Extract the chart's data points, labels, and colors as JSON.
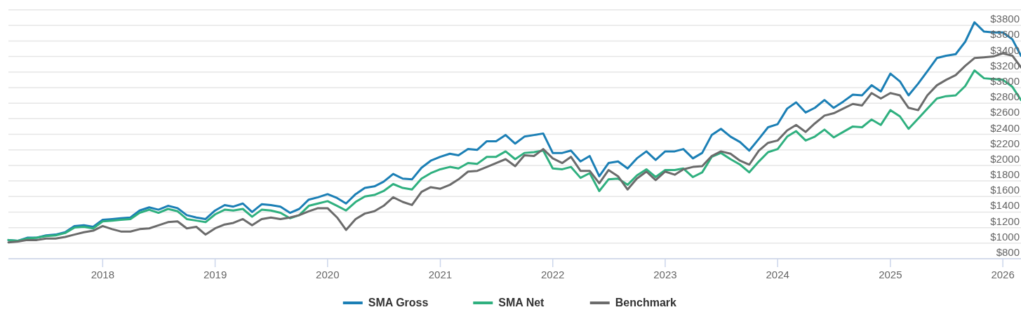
{
  "chart_data": {
    "type": "line",
    "x": [
      "2017-03",
      "2017-04",
      "2017-05",
      "2017-06",
      "2017-07",
      "2017-08",
      "2017-09",
      "2017-10",
      "2017-11",
      "2017-12",
      "2018-01",
      "2018-02",
      "2018-03",
      "2018-04",
      "2018-05",
      "2018-06",
      "2018-07",
      "2018-08",
      "2018-09",
      "2018-10",
      "2018-11",
      "2018-12",
      "2019-01",
      "2019-02",
      "2019-03",
      "2019-04",
      "2019-05",
      "2019-06",
      "2019-07",
      "2019-08",
      "2019-09",
      "2019-10",
      "2019-11",
      "2019-12",
      "2020-01",
      "2020-02",
      "2020-03",
      "2020-04",
      "2020-05",
      "2020-06",
      "2020-07",
      "2020-08",
      "2020-09",
      "2020-10",
      "2020-11",
      "2020-12",
      "2021-01",
      "2021-02",
      "2021-03",
      "2021-04",
      "2021-05",
      "2021-06",
      "2021-07",
      "2021-08",
      "2021-09",
      "2021-10",
      "2021-11",
      "2021-12",
      "2022-01",
      "2022-02",
      "2022-03",
      "2022-04",
      "2022-05",
      "2022-06",
      "2022-07",
      "2022-08",
      "2022-09",
      "2022-10",
      "2022-11",
      "2022-12",
      "2023-01",
      "2023-02",
      "2023-03",
      "2023-04",
      "2023-05",
      "2023-06",
      "2023-07",
      "2023-08",
      "2023-09",
      "2023-10",
      "2023-11",
      "2023-12",
      "2024-01",
      "2024-02",
      "2024-03",
      "2024-04",
      "2024-05",
      "2024-06",
      "2024-07",
      "2024-08",
      "2024-09",
      "2024-10",
      "2024-11",
      "2024-12",
      "2025-01",
      "2025-02",
      "2025-03",
      "2025-04",
      "2025-05",
      "2025-06",
      "2025-07",
      "2025-08",
      "2025-09",
      "2025-10",
      "2025-11",
      "2025-12",
      "2026-01",
      "2026-02",
      "2026-03"
    ],
    "series": [
      {
        "name": "SMA Gross",
        "color": "#1b7fb5",
        "values": [
          1040,
          1030,
          1070,
          1070,
          1100,
          1110,
          1140,
          1220,
          1230,
          1210,
          1300,
          1310,
          1320,
          1330,
          1420,
          1460,
          1430,
          1480,
          1450,
          1360,
          1330,
          1310,
          1420,
          1490,
          1470,
          1510,
          1400,
          1500,
          1490,
          1470,
          1390,
          1440,
          1560,
          1590,
          1630,
          1580,
          1510,
          1630,
          1710,
          1730,
          1790,
          1890,
          1830,
          1820,
          1970,
          2060,
          2110,
          2150,
          2130,
          2210,
          2200,
          2310,
          2310,
          2390,
          2280,
          2370,
          2390,
          2410,
          2160,
          2160,
          2190,
          2050,
          2120,
          1860,
          2030,
          2050,
          1960,
          2090,
          2180,
          2070,
          2180,
          2180,
          2210,
          2090,
          2160,
          2390,
          2470,
          2370,
          2300,
          2190,
          2340,
          2490,
          2530,
          2730,
          2810,
          2680,
          2740,
          2840,
          2740,
          2820,
          2910,
          2900,
          3030,
          2950,
          3180,
          3080,
          2900,
          3050,
          3210,
          3380,
          3410,
          3430,
          3590,
          3840,
          3720,
          3710,
          3710,
          3620,
          3410
        ]
      },
      {
        "name": "SMA Net",
        "color": "#2fb07f",
        "values": [
          1040,
          1030,
          1060,
          1070,
          1090,
          1100,
          1130,
          1200,
          1210,
          1190,
          1280,
          1290,
          1300,
          1310,
          1390,
          1430,
          1390,
          1440,
          1410,
          1310,
          1290,
          1270,
          1370,
          1430,
          1420,
          1440,
          1340,
          1430,
          1420,
          1390,
          1320,
          1360,
          1480,
          1510,
          1540,
          1480,
          1420,
          1530,
          1600,
          1620,
          1670,
          1760,
          1710,
          1690,
          1830,
          1900,
          1950,
          1980,
          1960,
          2030,
          2020,
          2110,
          2110,
          2180,
          2080,
          2160,
          2170,
          2190,
          1960,
          1950,
          1980,
          1840,
          1900,
          1670,
          1820,
          1830,
          1750,
          1870,
          1950,
          1850,
          1940,
          1940,
          1960,
          1850,
          1910,
          2110,
          2160,
          2080,
          2010,
          1910,
          2050,
          2170,
          2210,
          2370,
          2440,
          2320,
          2370,
          2460,
          2360,
          2430,
          2500,
          2490,
          2590,
          2520,
          2710,
          2630,
          2470,
          2600,
          2730,
          2860,
          2890,
          2900,
          3020,
          3220,
          3120,
          3110,
          3100,
          3010,
          2840
        ]
      },
      {
        "name": "Benchmark",
        "color": "#6b6b6b",
        "values": [
          1010,
          1020,
          1040,
          1040,
          1060,
          1060,
          1080,
          1110,
          1140,
          1160,
          1220,
          1180,
          1150,
          1150,
          1180,
          1190,
          1230,
          1270,
          1280,
          1190,
          1210,
          1110,
          1190,
          1240,
          1260,
          1310,
          1230,
          1310,
          1330,
          1310,
          1330,
          1360,
          1410,
          1450,
          1450,
          1330,
          1170,
          1310,
          1380,
          1410,
          1480,
          1590,
          1530,
          1490,
          1660,
          1720,
          1700,
          1750,
          1820,
          1920,
          1930,
          1980,
          2030,
          2080,
          1990,
          2130,
          2120,
          2210,
          2090,
          2030,
          2110,
          1930,
          1930,
          1770,
          1940,
          1860,
          1690,
          1830,
          1920,
          1810,
          1920,
          1880,
          1950,
          1980,
          1990,
          2120,
          2180,
          2150,
          2060,
          2010,
          2190,
          2290,
          2320,
          2450,
          2520,
          2430,
          2540,
          2640,
          2670,
          2730,
          2790,
          2770,
          2930,
          2860,
          2930,
          2900,
          2740,
          2710,
          2900,
          3030,
          3100,
          3160,
          3280,
          3380,
          3390,
          3400,
          3440,
          3410,
          3260
        ]
      }
    ],
    "xlim": [
      "2017-03",
      "2026-03"
    ],
    "xticks": [
      "2018",
      "2019",
      "2020",
      "2021",
      "2022",
      "2023",
      "2024",
      "2025",
      "2026"
    ],
    "ylim": [
      800,
      4000
    ],
    "yticks": [
      {
        "value": 800,
        "label": "$800"
      },
      {
        "value": 1000,
        "label": "$1000"
      },
      {
        "value": 1200,
        "label": "$1200"
      },
      {
        "value": 1400,
        "label": "$1400"
      },
      {
        "value": 1600,
        "label": "$1600"
      },
      {
        "value": 1800,
        "label": "$1800"
      },
      {
        "value": 2000,
        "label": "$2000"
      },
      {
        "value": 2200,
        "label": "$2200"
      },
      {
        "value": 2400,
        "label": "$2400"
      },
      {
        "value": 2600,
        "label": "$2600"
      },
      {
        "value": 2800,
        "label": "$2800"
      },
      {
        "value": 3000,
        "label": "$3000"
      },
      {
        "value": 3200,
        "label": "$3200"
      },
      {
        "value": 3400,
        "label": "$3400"
      },
      {
        "value": 3600,
        "label": "$3600"
      },
      {
        "value": 3800,
        "label": "$3800"
      },
      {
        "value": 4000,
        "label": null
      }
    ],
    "grid": "y",
    "legend": "bottom",
    "marker": "none",
    "line_style": "solid"
  }
}
